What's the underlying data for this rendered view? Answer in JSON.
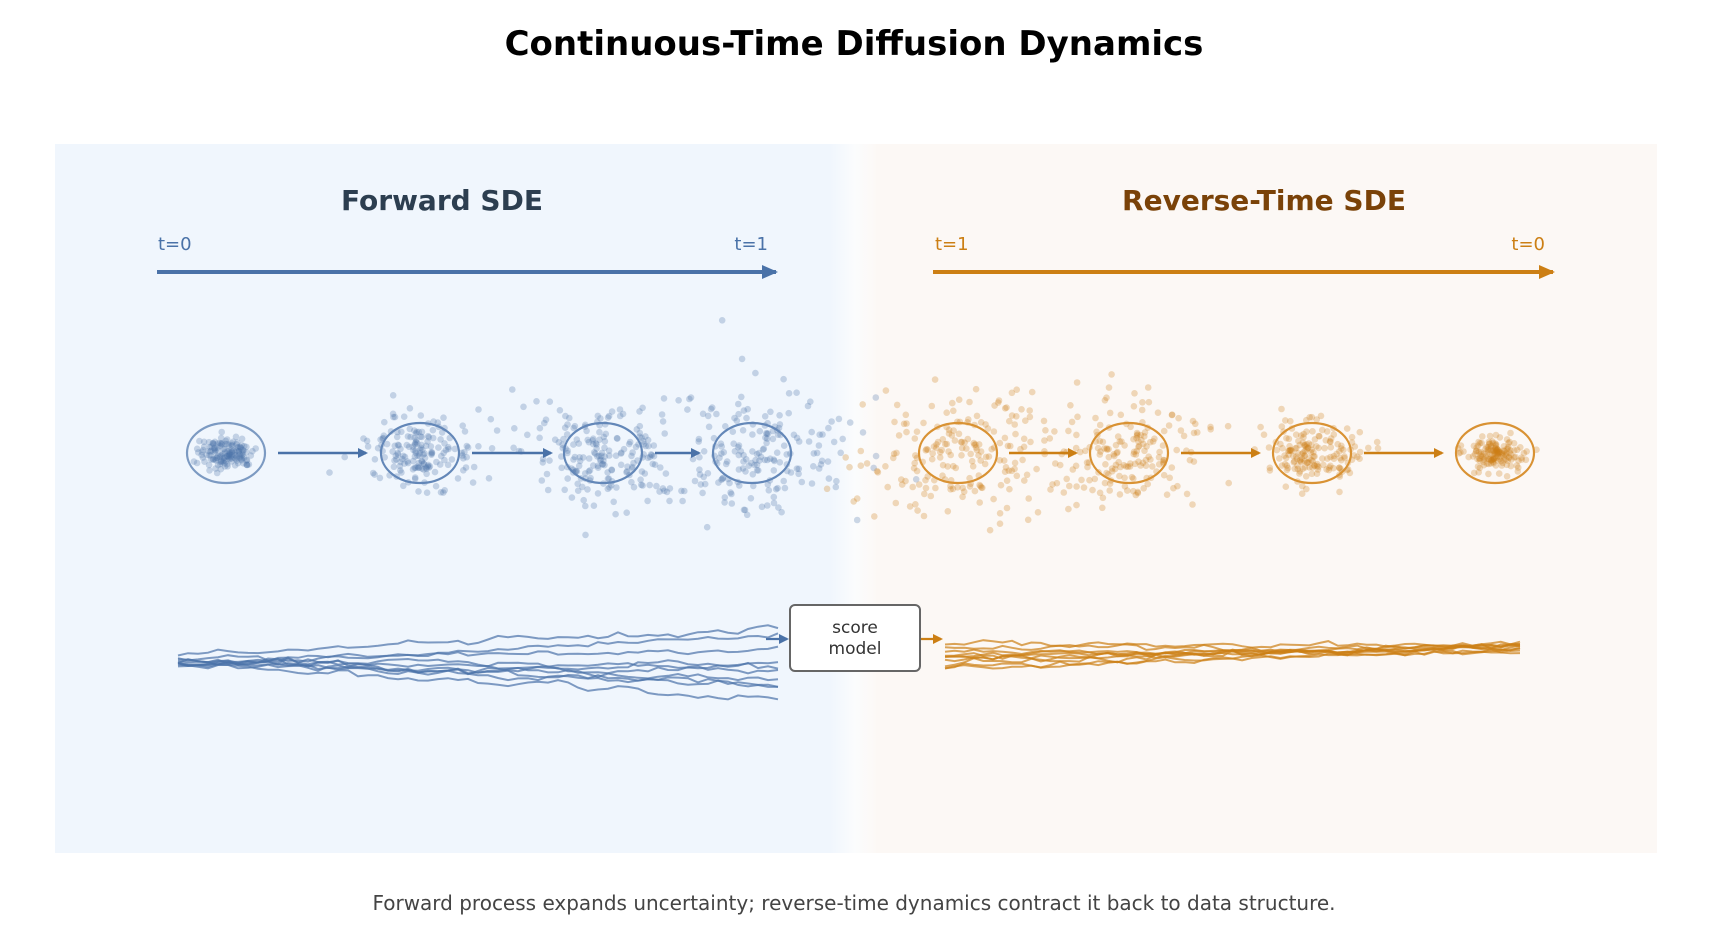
{
  "title": "Continuous-Time Diffusion Dynamics",
  "caption": "Forward process expands uncertainty; reverse-time dynamics contract it back to data structure.",
  "forward": {
    "title": "Forward SDE",
    "t_start_label": "t=0",
    "t_end_label": "t=1",
    "color": "#4a72a8",
    "panel_color": "#f0f6fd",
    "title_color": "#2c3e50"
  },
  "reverse": {
    "title": "Reverse-Time SDE",
    "t_start_label": "t=1",
    "t_end_label": "t=0",
    "color": "#cc7f14",
    "panel_color": "#fcf8f5",
    "title_color": "#7a4208"
  },
  "score_model": {
    "line1": "score",
    "line2": "model"
  }
}
